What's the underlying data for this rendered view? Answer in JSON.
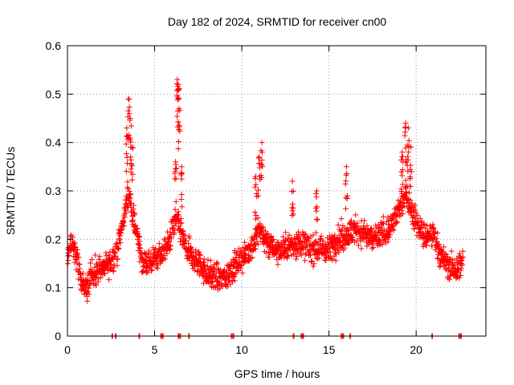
{
  "chart_data": {
    "type": "scatter",
    "title": "Day 182 of 2024, SRMTID for receiver cn00",
    "xlabel": "GPS time / hours",
    "ylabel": "SRMTID / TECUs",
    "xlim": [
      0,
      24
    ],
    "ylim": [
      0,
      0.6
    ],
    "xticks": [
      0,
      5,
      10,
      15,
      20
    ],
    "yticks": [
      0,
      0.1,
      0.2,
      0.3,
      0.4,
      0.5,
      0.6
    ],
    "xtick_labels": [
      "0",
      "5",
      "10",
      "15",
      "20"
    ],
    "ytick_labels": [
      "0",
      "0.1",
      "0.2",
      "0.3",
      "0.4",
      "0.5",
      "0.6"
    ],
    "grid": true,
    "marker": "+",
    "color": "#ff0000",
    "series": [
      {
        "name": "SRMTID",
        "trend": [
          [
            0.0,
            0.17
          ],
          [
            0.3,
            0.19
          ],
          [
            0.6,
            0.16
          ],
          [
            0.8,
            0.1
          ],
          [
            1.0,
            0.09
          ],
          [
            1.3,
            0.12
          ],
          [
            1.6,
            0.13
          ],
          [
            2.0,
            0.14
          ],
          [
            2.4,
            0.15
          ],
          [
            2.8,
            0.17
          ],
          [
            3.0,
            0.2
          ],
          [
            3.2,
            0.24
          ],
          [
            3.5,
            0.3
          ],
          [
            3.7,
            0.26
          ],
          [
            4.0,
            0.21
          ],
          [
            4.3,
            0.15
          ],
          [
            4.6,
            0.15
          ],
          [
            5.0,
            0.16
          ],
          [
            5.4,
            0.17
          ],
          [
            5.8,
            0.19
          ],
          [
            6.2,
            0.24
          ],
          [
            6.5,
            0.22
          ],
          [
            6.8,
            0.18
          ],
          [
            7.2,
            0.16
          ],
          [
            7.6,
            0.15
          ],
          [
            8.0,
            0.13
          ],
          [
            8.5,
            0.12
          ],
          [
            9.0,
            0.12
          ],
          [
            9.5,
            0.14
          ],
          [
            10.0,
            0.16
          ],
          [
            10.5,
            0.18
          ],
          [
            11.0,
            0.22
          ],
          [
            11.5,
            0.19
          ],
          [
            12.0,
            0.18
          ],
          [
            12.5,
            0.18
          ],
          [
            13.0,
            0.19
          ],
          [
            13.5,
            0.19
          ],
          [
            14.0,
            0.18
          ],
          [
            14.5,
            0.18
          ],
          [
            15.0,
            0.18
          ],
          [
            15.5,
            0.2
          ],
          [
            16.0,
            0.21
          ],
          [
            16.5,
            0.22
          ],
          [
            17.0,
            0.21
          ],
          [
            17.5,
            0.2
          ],
          [
            18.0,
            0.21
          ],
          [
            18.5,
            0.22
          ],
          [
            19.0,
            0.26
          ],
          [
            19.4,
            0.3
          ],
          [
            19.8,
            0.25
          ],
          [
            20.2,
            0.22
          ],
          [
            20.6,
            0.2
          ],
          [
            21.0,
            0.21
          ],
          [
            21.5,
            0.16
          ],
          [
            22.0,
            0.14
          ],
          [
            22.4,
            0.14
          ],
          [
            22.7,
            0.16
          ]
        ],
        "spikes": [
          [
            3.4,
            0.43
          ],
          [
            3.5,
            0.49
          ],
          [
            3.6,
            0.45
          ],
          [
            3.7,
            0.39
          ],
          [
            6.2,
            0.36
          ],
          [
            6.3,
            0.53
          ],
          [
            6.35,
            0.52
          ],
          [
            6.4,
            0.47
          ],
          [
            6.55,
            0.35
          ],
          [
            10.8,
            0.33
          ],
          [
            11.0,
            0.37
          ],
          [
            11.15,
            0.4
          ],
          [
            19.2,
            0.38
          ],
          [
            19.4,
            0.44
          ],
          [
            19.55,
            0.43
          ],
          [
            19.7,
            0.39
          ],
          [
            16.0,
            0.35
          ],
          [
            14.3,
            0.3
          ],
          [
            12.9,
            0.32
          ]
        ],
        "zero_points": [
          2.55,
          2.75,
          4.1,
          5.35,
          5.45,
          6.35,
          6.45,
          6.95,
          9.4,
          9.5,
          12.95,
          13.4,
          13.5,
          15.7,
          15.8,
          16.2,
          20.9,
          22.45,
          22.55
        ]
      }
    ]
  }
}
